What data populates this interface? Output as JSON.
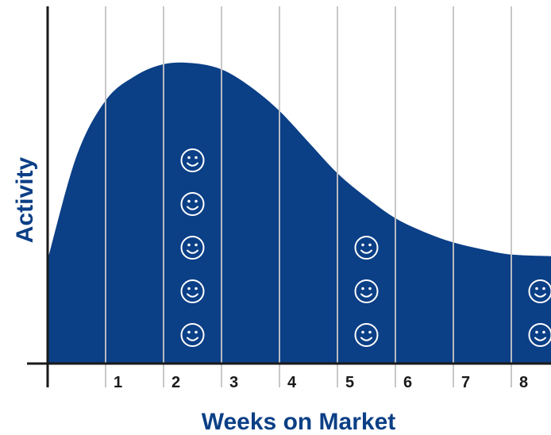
{
  "chart_data": {
    "type": "area",
    "xlabel": "Weeks on Market",
    "ylabel": "Activity",
    "x_ticks": [
      "1",
      "2",
      "3",
      "4",
      "5",
      "6",
      "7",
      "8"
    ],
    "xlim": [
      0,
      8.75
    ],
    "ylim": [
      0,
      100
    ],
    "grid": true,
    "series": [
      {
        "values": [
          [
            0,
            30
          ],
          [
            0.5,
            60
          ],
          [
            1,
            76
          ],
          [
            1.5,
            83
          ],
          [
            2,
            86.5
          ],
          [
            2.5,
            86.8
          ],
          [
            3,
            85
          ],
          [
            3.5,
            80
          ],
          [
            4,
            73
          ],
          [
            4.5,
            64
          ],
          [
            5,
            55
          ],
          [
            5.5,
            48
          ],
          [
            6,
            42
          ],
          [
            6.5,
            38
          ],
          [
            7,
            35
          ],
          [
            7.5,
            33
          ],
          [
            8,
            31.5
          ],
          [
            8.75,
            31
          ]
        ]
      }
    ],
    "markers": [
      {
        "icon": "smiley-face-icon",
        "week": 2.5,
        "count": 5
      },
      {
        "icon": "smiley-face-icon",
        "week": 5.5,
        "count": 3
      },
      {
        "icon": "smiley-face-icon",
        "week": 8.5,
        "count": 2
      }
    ],
    "colors": {
      "area": "#0b3f86",
      "grid": "#c8c8c8",
      "axis": "#1a1a1a",
      "icon_stroke": "#ffffff",
      "title": "#0b3f86"
    }
  }
}
